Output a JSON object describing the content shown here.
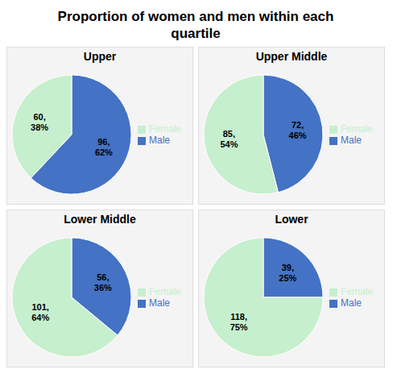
{
  "title": "Proportion of women and men within each\nquartile",
  "chart_data": [
    {
      "type": "pie",
      "title": "Upper",
      "categories": [
        "Male",
        "Female"
      ],
      "values": [
        62,
        38
      ],
      "value_labels": [
        "96,\n62%",
        "60,\n38%"
      ],
      "colors": [
        "#4472c4",
        "#c6efce"
      ],
      "legend": "right"
    },
    {
      "type": "pie",
      "title": "Upper Middle",
      "categories": [
        "Male",
        "Female"
      ],
      "values": [
        46,
        54
      ],
      "value_labels": [
        "72,\n46%",
        "85,\n54%"
      ],
      "colors": [
        "#4472c4",
        "#c6efce"
      ],
      "legend": "right"
    },
    {
      "type": "pie",
      "title": "Lower Middle",
      "categories": [
        "Male",
        "Female"
      ],
      "values": [
        36,
        64
      ],
      "value_labels": [
        "56,\n36%",
        "101,\n64%"
      ],
      "colors": [
        "#4472c4",
        "#c6efce"
      ],
      "legend": "right"
    },
    {
      "type": "pie",
      "title": "Lower",
      "categories": [
        "Male",
        "Female"
      ],
      "values": [
        25,
        75
      ],
      "value_labels": [
        "39,\n25%",
        "118,\n75%"
      ],
      "colors": [
        "#4472c4",
        "#c6efce"
      ],
      "legend": "right"
    }
  ]
}
